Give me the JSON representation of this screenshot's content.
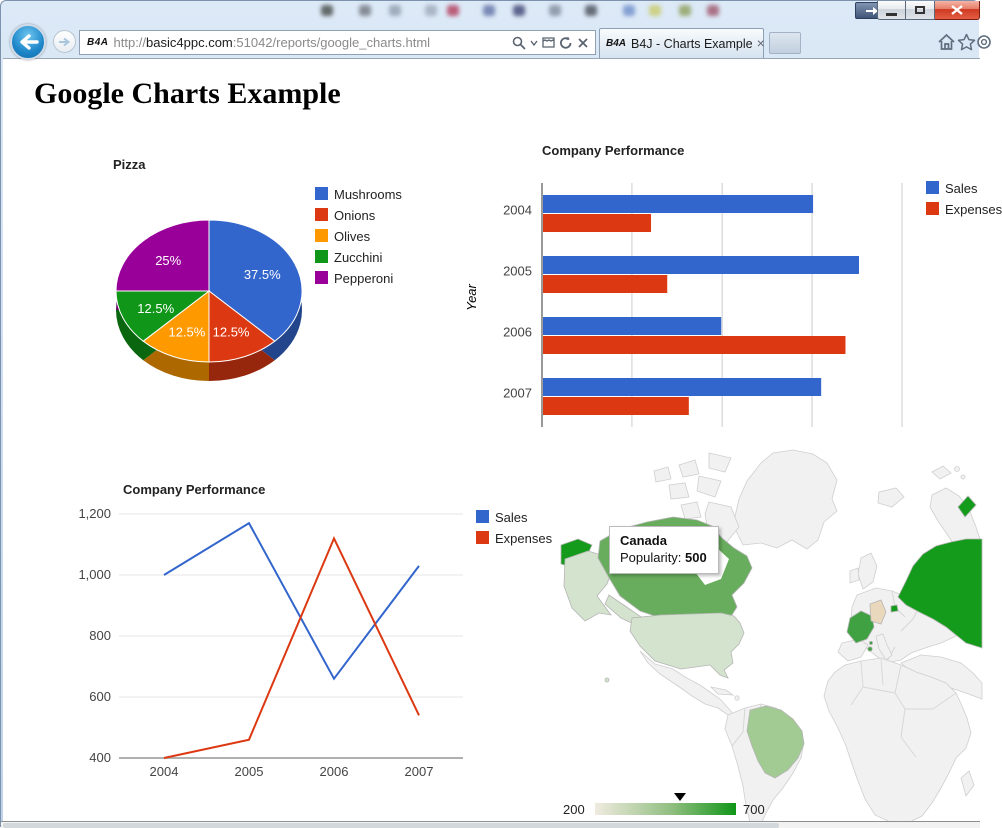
{
  "browser": {
    "favicon": "B4A",
    "url": {
      "prefix": "http://",
      "domain": "basic4ppc.com",
      "path": ":51042/reports/google_charts.html"
    },
    "tab_title": "B4J - Charts Example",
    "tab_close": "×"
  },
  "page": {
    "heading": "Google Charts Example"
  },
  "chart_data": [
    {
      "type": "pie",
      "title": "Pizza",
      "labels": [
        "Mushrooms",
        "Onions",
        "Olives",
        "Zucchini",
        "Pepperoni"
      ],
      "values": [
        3,
        1,
        1,
        1,
        2
      ],
      "percent_labels": [
        "37.5%",
        "12.5%",
        "12.5%",
        "12.5%",
        "25%"
      ],
      "colors": [
        "#3366cc",
        "#dc3912",
        "#ff9900",
        "#109618",
        "#990099"
      ],
      "is3d": true,
      "legend_position": "right"
    },
    {
      "type": "bar",
      "orientation": "horizontal",
      "title": "Company Performance",
      "categories": [
        "2004",
        "2005",
        "2006",
        "2007"
      ],
      "series": [
        {
          "name": "Sales",
          "color": "#3366cc",
          "values": [
            1000,
            1170,
            660,
            1030
          ]
        },
        {
          "name": "Expenses",
          "color": "#dc3912",
          "values": [
            400,
            460,
            1120,
            540
          ]
        }
      ],
      "ylabel": "Year",
      "ylabel_color": "#cc0000",
      "xlim": [
        0,
        1333
      ],
      "gridlines": [
        0,
        333,
        667,
        1000,
        1333
      ],
      "grid": true,
      "legend_position": "right"
    },
    {
      "type": "line",
      "title": "Company Performance",
      "x": [
        "2004",
        "2005",
        "2006",
        "2007"
      ],
      "series": [
        {
          "name": "Sales",
          "color": "#3366cc",
          "values": [
            1000,
            1170,
            660,
            1030
          ]
        },
        {
          "name": "Expenses",
          "color": "#dc3912",
          "values": [
            400,
            460,
            1120,
            540
          ]
        }
      ],
      "ylim": [
        400,
        1200
      ],
      "yticks": [
        400,
        600,
        800,
        1000,
        1200
      ],
      "ytick_labels": [
        "400",
        "600",
        "800",
        "1,000",
        "1,200"
      ],
      "grid": true,
      "legend_position": "right"
    },
    {
      "type": "heatmap",
      "subtype": "geochart",
      "title": "",
      "countries": [
        {
          "name": "Germany",
          "color": "#e9d8bc"
        },
        {
          "name": "United States",
          "color": "#d4e3cd"
        },
        {
          "name": "Brazil",
          "color": "#a2cb93"
        },
        {
          "name": "Canada",
          "value": 500,
          "color": "#68ac5d"
        },
        {
          "name": "France",
          "color": "#3fa142"
        },
        {
          "name": "Russia",
          "color": "#149b1b"
        }
      ],
      "tooltip": {
        "title": "Canada",
        "label": "Popularity: ",
        "value": "500"
      },
      "scale": {
        "min": "200",
        "max": "700",
        "marker_fraction": 0.6,
        "gradient": [
          "#f0ebe0",
          "#8fbe7f",
          "#109618"
        ]
      },
      "land_default": "#f1f1f1",
      "land_border": "#cfcfcf"
    }
  ]
}
